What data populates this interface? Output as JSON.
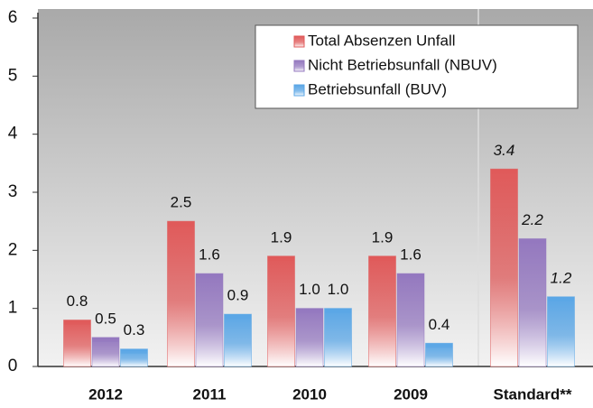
{
  "chart_data": {
    "type": "bar",
    "categories": [
      "2012",
      "2011",
      "2010",
      "2009",
      "Standard**"
    ],
    "series": [
      {
        "name": "Total Absenzen Unfall",
        "color": "#e05a5a",
        "values": [
          0.8,
          2.5,
          1.9,
          1.9,
          3.4
        ],
        "value_labels": [
          "0.8",
          "2.5",
          "1.9",
          "1.9",
          "3.4"
        ]
      },
      {
        "name": "Nicht Betriebsunfall (NBUV)",
        "color": "#9478bf",
        "values": [
          0.5,
          1.6,
          1.0,
          1.6,
          2.2
        ],
        "value_labels": [
          "0.5",
          "1.6",
          "1.0",
          "1.6",
          "2.2"
        ]
      },
      {
        "name": "Betriebsunfall (BUV)",
        "color": "#5aa6e6",
        "values": [
          0.3,
          0.9,
          1.0,
          0.4,
          1.2
        ],
        "value_labels": [
          "0.3",
          "0.9",
          "1.0",
          "0.4",
          "1.2"
        ]
      }
    ],
    "ylim": [
      0,
      6
    ],
    "yticks": [
      0,
      1,
      2,
      3,
      4,
      5,
      6
    ],
    "legend": "top-right"
  }
}
